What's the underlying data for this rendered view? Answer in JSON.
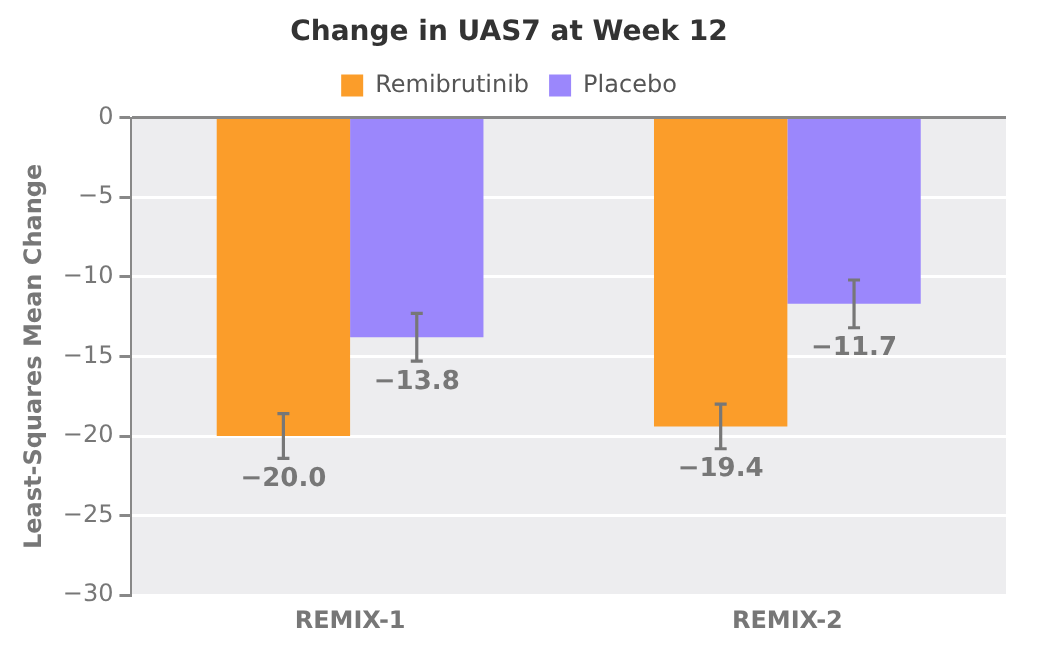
{
  "chart_data": {
    "type": "bar",
    "title": "Change in UAS7 at Week 12",
    "ylabel": "Least-Squares Mean Change",
    "categories": [
      "REMIX-1",
      "REMIX-2"
    ],
    "series": [
      {
        "name": "Remibrutinib",
        "color": "#fb9d2a",
        "values": [
          -20.0,
          -19.4
        ],
        "errors": [
          1.4,
          1.4
        ],
        "value_labels": [
          "−20.0",
          "−19.4"
        ]
      },
      {
        "name": "Placebo",
        "color": "#9b87fc",
        "values": [
          -13.8,
          -11.7
        ],
        "errors": [
          1.5,
          1.5
        ],
        "value_labels": [
          "−13.8",
          "−11.7"
        ]
      }
    ],
    "ylim": [
      -30,
      0
    ],
    "yticks": [
      0,
      {
        "value": -5,
        "label": "−5"
      },
      {
        "value": -10,
        "label": "−10"
      },
      {
        "value": -15,
        "label": "−15"
      },
      {
        "value": -20,
        "label": "−20"
      },
      {
        "value": -25,
        "label": "−25"
      },
      {
        "value": -30,
        "label": "−30"
      }
    ],
    "grid": "y",
    "legend": "top"
  }
}
